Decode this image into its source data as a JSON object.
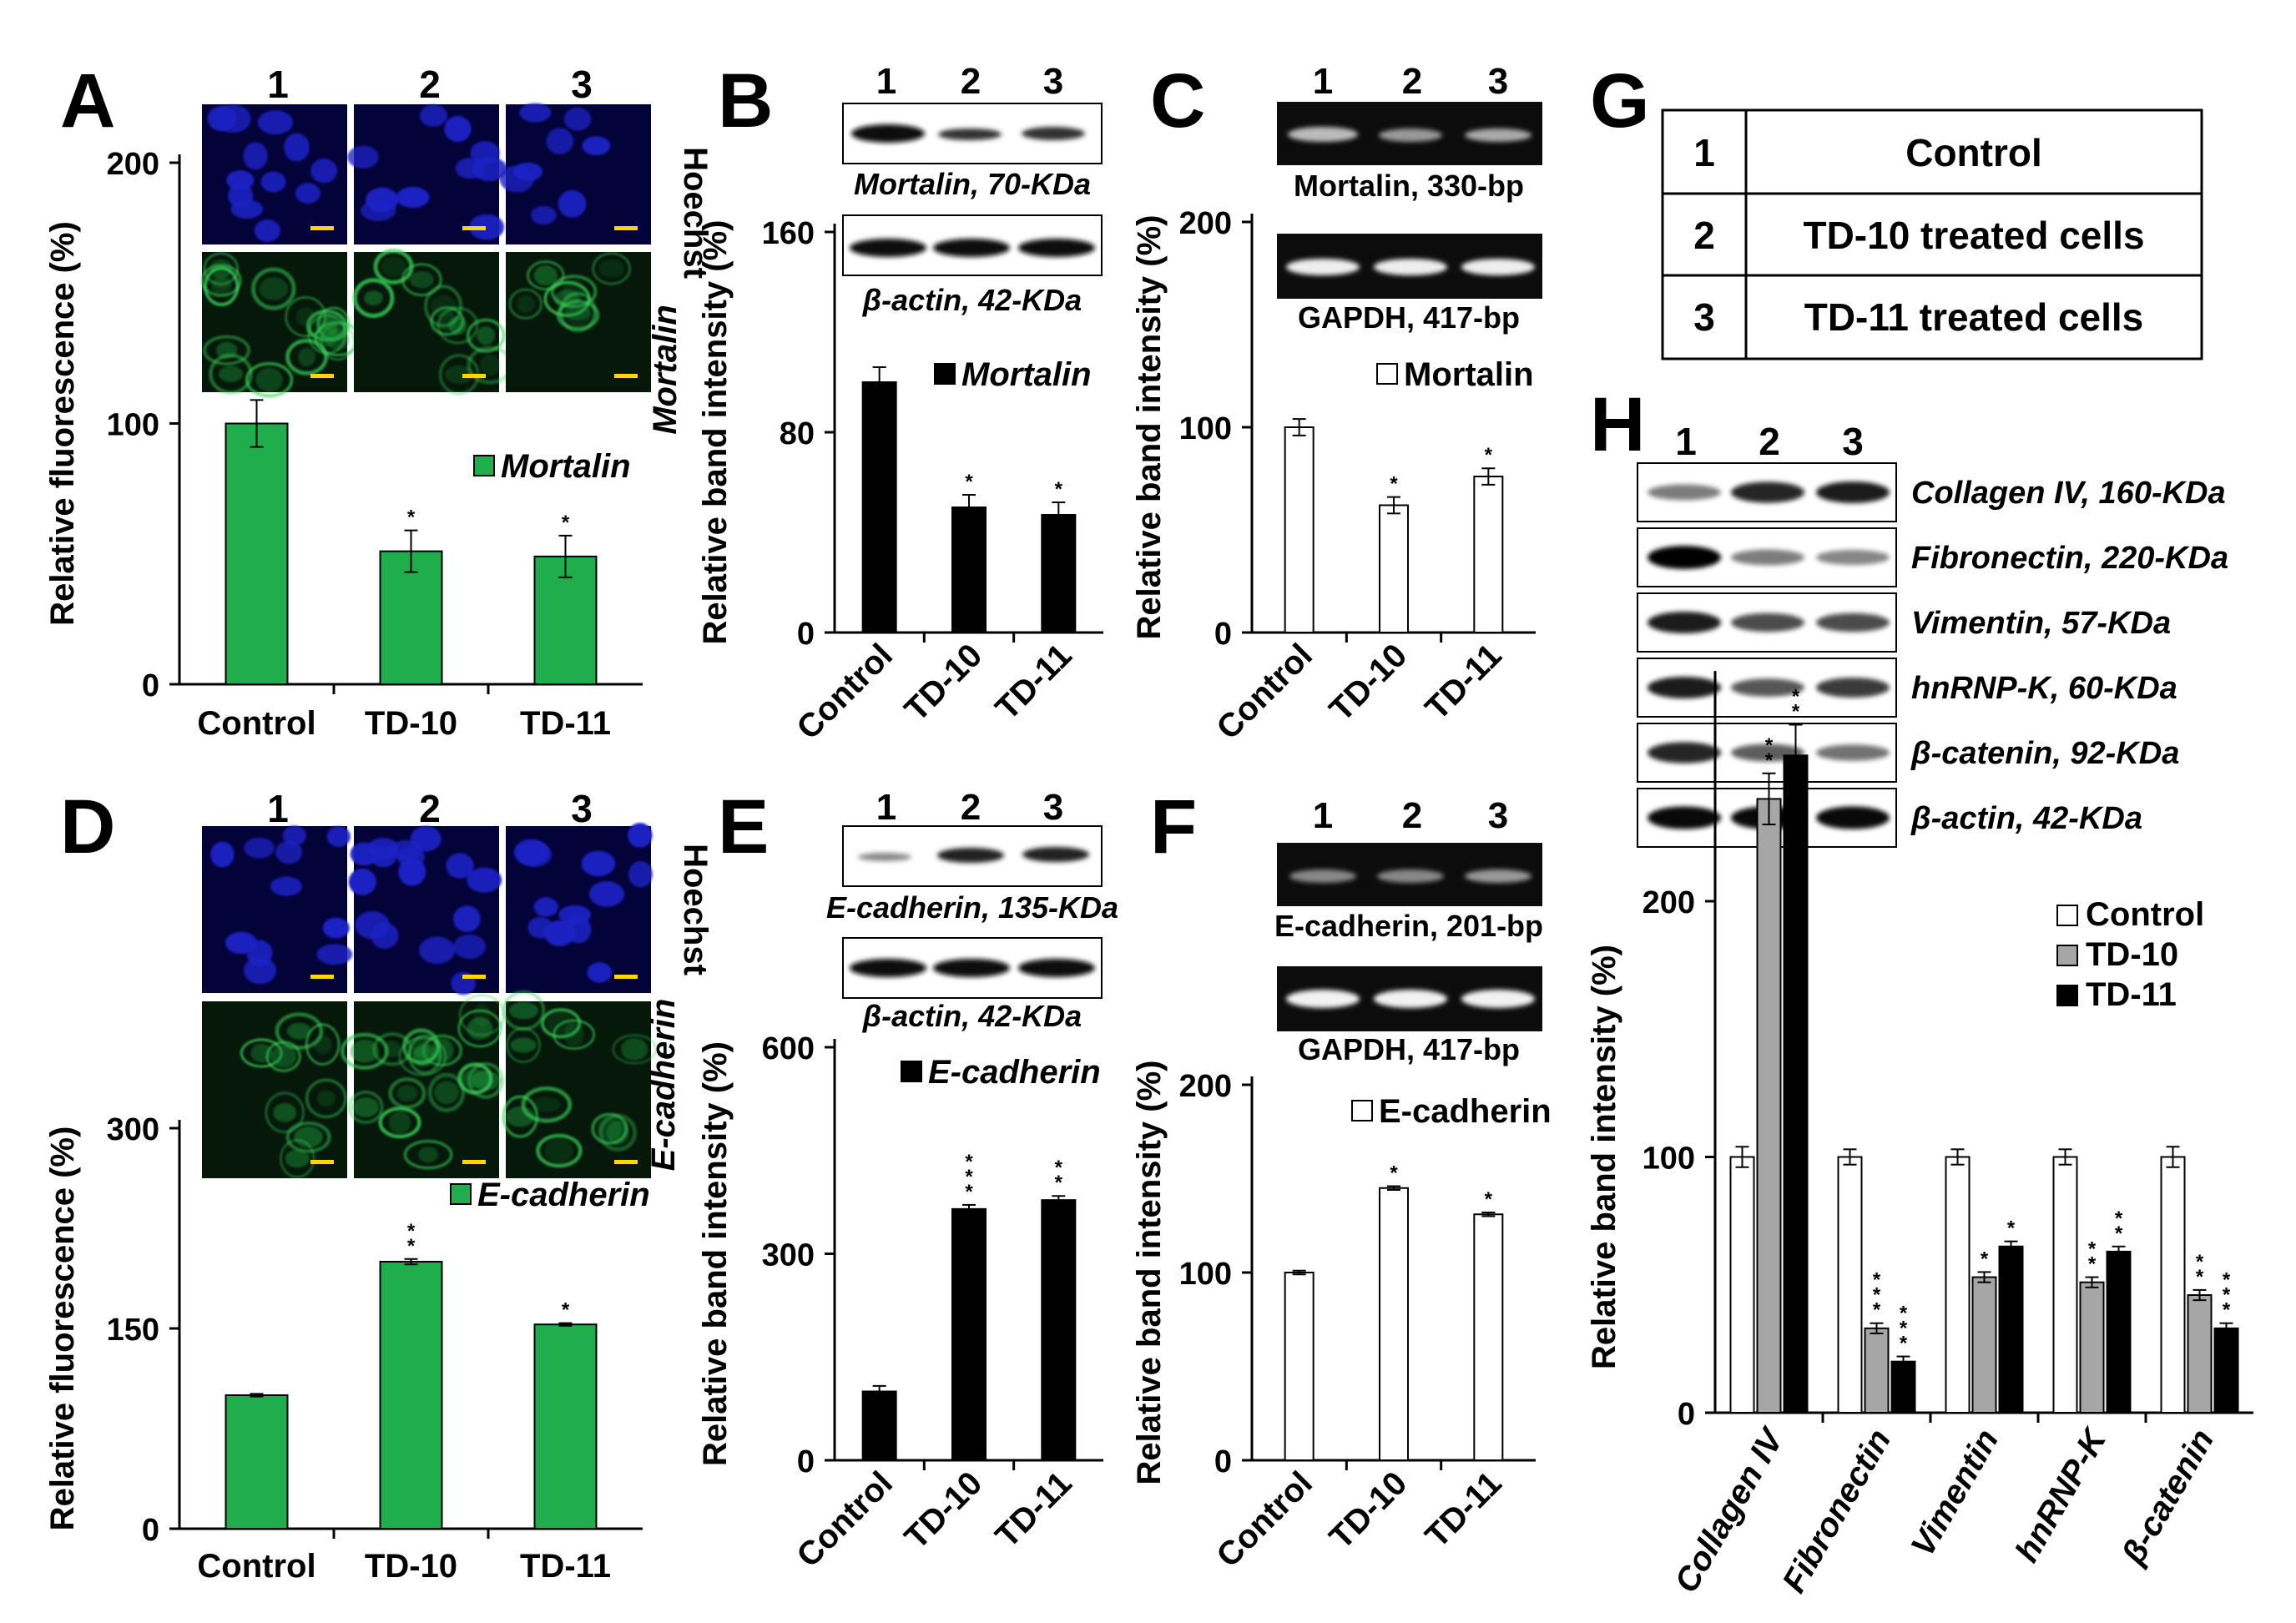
{
  "panels": {
    "A": "A",
    "B": "B",
    "C": "C",
    "D": "D",
    "E": "E",
    "F": "F",
    "G": "G",
    "H": "H"
  },
  "lanes": [
    "1",
    "2",
    "3"
  ],
  "stains": {
    "hoechst": "Hoechst",
    "mortalin": "Mortalin",
    "ecadherin": "E-cadherin"
  },
  "bands": {
    "B_top": "Mortalin, 70-KDa",
    "B_actin": "β-actin, 42-KDa",
    "C_top": "Mortalin, 330-bp",
    "C_gapdh": "GAPDH, 417-bp",
    "E_top": "E-cadherin, 135-KDa",
    "E_actin": "β-actin, 42-KDa",
    "F_top": "E-cadherin, 201-bp",
    "F_gapdh": "GAPDH, 417-bp"
  },
  "table_G": [
    {
      "num": "1",
      "label": "Control"
    },
    {
      "num": "2",
      "label": "TD-10 treated cells"
    },
    {
      "num": "3",
      "label": "TD-11 treated cells"
    }
  ],
  "blots_H": [
    "Collagen IV, 160-KDa",
    "Fibronectin, 220-KDa",
    "Vimentin, 57-KDa",
    "hnRNP-K, 60-KDa",
    "β-catenin, 92-KDa",
    "β-actin, 42-KDa"
  ],
  "colors": {
    "green": "#1fae4b",
    "black": "#000000",
    "gray": "#a6a6a6",
    "white": "#ffffff",
    "hoechst_bg": "#03033a",
    "nucleus": "#1c22c4",
    "green_bg": "#05180a",
    "scale_bar": "#ffd700",
    "gel_bg": "#0c0c0c",
    "gel_band": "#e6e6e6"
  },
  "chart_data": [
    {
      "panel": "A",
      "type": "bar",
      "categories": [
        "Control",
        "TD-10",
        "TD-11"
      ],
      "series": [
        {
          "name": "Mortalin",
          "values": [
            100,
            51,
            49
          ],
          "errors": [
            9,
            8,
            8
          ],
          "color": "green"
        }
      ],
      "signif": [
        "",
        "*",
        "*"
      ],
      "ylabel": "Relative fluorescence (%)",
      "yticks": [
        0,
        100,
        200
      ],
      "ylim": [
        0,
        200
      ],
      "xticklabel_rotation": 0
    },
    {
      "panel": "B",
      "type": "bar",
      "categories": [
        "Control",
        "TD-10",
        "TD-11"
      ],
      "series": [
        {
          "name": "Mortalin",
          "values": [
            100,
            50,
            47
          ],
          "errors": [
            6,
            5,
            5
          ],
          "color": "black"
        }
      ],
      "signif": [
        "",
        "*",
        "*"
      ],
      "ylabel": "Relative band intensity (%)",
      "yticks": [
        0,
        80,
        160
      ],
      "ylim": [
        0,
        160
      ],
      "xticklabel_rotation": -45
    },
    {
      "panel": "C",
      "type": "bar",
      "categories": [
        "Control",
        "TD-10",
        "TD-11"
      ],
      "series": [
        {
          "name": "Mortalin",
          "values": [
            100,
            62,
            76
          ],
          "errors": [
            4,
            4,
            4
          ],
          "color": "white"
        }
      ],
      "signif": [
        "",
        "*",
        "*"
      ],
      "ylabel": "Relative band intensity (%)",
      "yticks": [
        0,
        100,
        200
      ],
      "ylim": [
        0,
        200
      ],
      "xticklabel_rotation": -45
    },
    {
      "panel": "D",
      "type": "bar",
      "categories": [
        "Control",
        "TD-10",
        "TD-11"
      ],
      "series": [
        {
          "name": "E-cadherin",
          "values": [
            100,
            200,
            153
          ],
          "errors": [
            1,
            2,
            1
          ],
          "color": "green"
        }
      ],
      "signif": [
        "",
        "**",
        "*"
      ],
      "ylabel": "Relative fluorescence (%)",
      "yticks": [
        0,
        150,
        300
      ],
      "ylim": [
        0,
        300
      ],
      "xticklabel_rotation": 0
    },
    {
      "panel": "E",
      "type": "bar",
      "categories": [
        "Control",
        "TD-10",
        "TD-11"
      ],
      "series": [
        {
          "name": "E-cadherin",
          "values": [
            100,
            365,
            378
          ],
          "errors": [
            8,
            6,
            6
          ],
          "color": "black"
        }
      ],
      "signif": [
        "",
        "***",
        "**"
      ],
      "ylabel": "Relative band intensity (%)",
      "yticks": [
        0,
        300,
        600
      ],
      "ylim": [
        0,
        600
      ],
      "xticklabel_rotation": -45
    },
    {
      "panel": "F",
      "type": "bar",
      "categories": [
        "Control",
        "TD-10",
        "TD-11"
      ],
      "series": [
        {
          "name": "E-cadherin",
          "values": [
            100,
            145,
            131
          ],
          "errors": [
            1,
            1,
            1
          ],
          "color": "white"
        }
      ],
      "signif": [
        "",
        "*",
        "*"
      ],
      "ylabel": "Relative band intensity (%)",
      "yticks": [
        0,
        100,
        200
      ],
      "ylim": [
        0,
        200
      ],
      "xticklabel_rotation": -45
    },
    {
      "panel": "H",
      "type": "bar",
      "categories": [
        "Collagen IV",
        "Fibronectin",
        "Vimentin",
        "hnRNP-K",
        "β-catenin"
      ],
      "series": [
        {
          "name": "Control",
          "values": [
            100,
            100,
            100,
            100,
            100
          ],
          "errors": [
            4,
            3,
            3,
            3,
            4
          ],
          "color": "white"
        },
        {
          "name": "TD-10",
          "values": [
            240,
            33,
            53,
            51,
            46
          ],
          "errors": [
            10,
            2,
            2,
            2,
            2
          ],
          "color": "gray"
        },
        {
          "name": "TD-11",
          "values": [
            257,
            20,
            65,
            63,
            33
          ],
          "errors": [
            12,
            2,
            2,
            2,
            2
          ],
          "color": "black"
        }
      ],
      "signif": [
        [
          "",
          "**",
          "**"
        ],
        [
          "",
          "***",
          "***"
        ],
        [
          "",
          "*",
          "*"
        ],
        [
          "",
          "**",
          "**"
        ],
        [
          "",
          "**",
          "***"
        ]
      ],
      "ylabel": "Relative band intensity (%)",
      "yticks": [
        0,
        100,
        200
      ],
      "ylim": [
        0,
        290
      ],
      "xticklabel_rotation": -60,
      "xticklabel_italic": true,
      "legend": "top-right"
    }
  ]
}
